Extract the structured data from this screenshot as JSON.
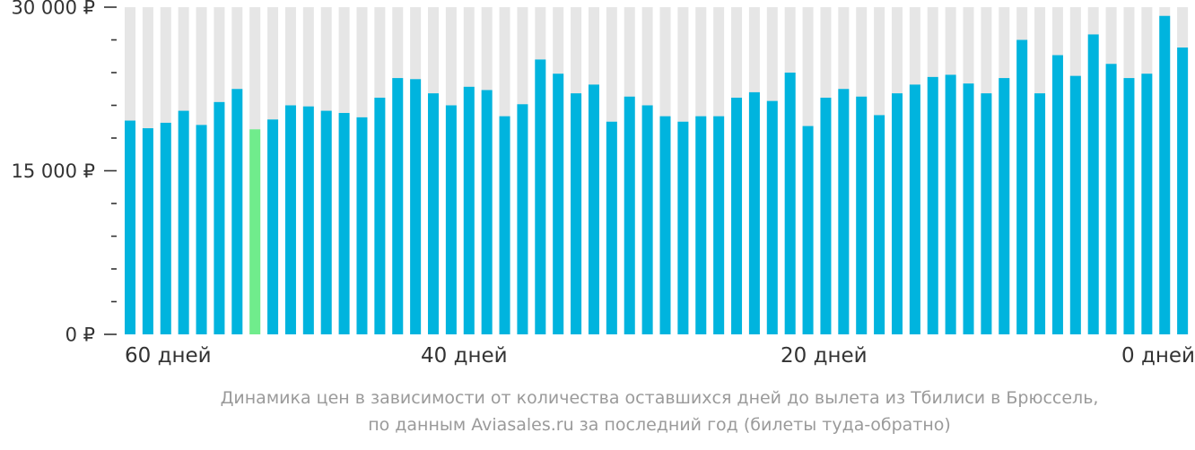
{
  "chart_data": {
    "type": "bar",
    "ylim": [
      0,
      30000
    ],
    "y_ticks": [
      {
        "value": 30000,
        "label": "30 000 ₽"
      },
      {
        "value": 15000,
        "label": "15 000 ₽"
      },
      {
        "value": 0,
        "label": "0 ₽"
      }
    ],
    "x_tick_labels": [
      {
        "days": 60,
        "label": "60 дней"
      },
      {
        "days": 40,
        "label": "40 дней"
      },
      {
        "days": 20,
        "label": "20 дней"
      },
      {
        "days": 0,
        "label": "0 дней"
      }
    ],
    "days_to_departure": [
      59,
      58,
      57,
      56,
      55,
      54,
      53,
      52,
      51,
      50,
      49,
      48,
      47,
      46,
      45,
      44,
      43,
      42,
      41,
      40,
      39,
      38,
      37,
      36,
      35,
      34,
      33,
      32,
      31,
      30,
      29,
      28,
      27,
      26,
      25,
      24,
      23,
      22,
      21,
      20,
      19,
      18,
      17,
      16,
      15,
      14,
      13,
      12,
      11,
      10,
      9,
      8,
      7,
      6,
      5,
      4,
      3,
      2,
      1,
      0
    ],
    "values": [
      19600,
      18900,
      19400,
      20500,
      19200,
      21300,
      22500,
      18800,
      19700,
      21000,
      20900,
      20500,
      20300,
      19900,
      21700,
      23500,
      23400,
      22100,
      21000,
      22700,
      22400,
      20000,
      21100,
      25200,
      23900,
      22100,
      22900,
      19500,
      21800,
      21000,
      20000,
      19500,
      20000,
      20000,
      21700,
      22200,
      21400,
      24000,
      19100,
      21700,
      22500,
      21800,
      20100,
      22100,
      22900,
      23600,
      23800,
      23000,
      22100,
      23500,
      27000,
      22100,
      25600,
      23700,
      27500,
      24800,
      23500,
      23900,
      29200,
      26300
    ],
    "highlight_index": 7,
    "colors": {
      "bar": "#00b4de",
      "highlight": "#70ec8c",
      "background_stripe": "#e6e6e6",
      "axis": "#333333"
    },
    "grid": "vertical background stripes",
    "caption_line1": "Динамика цен в зависимости от количества оставшихся дней до вылета из Тбилиси в Брюссель,",
    "caption_line2": "по данным Aviasales.ru за последний год (билеты туда-обратно)"
  }
}
